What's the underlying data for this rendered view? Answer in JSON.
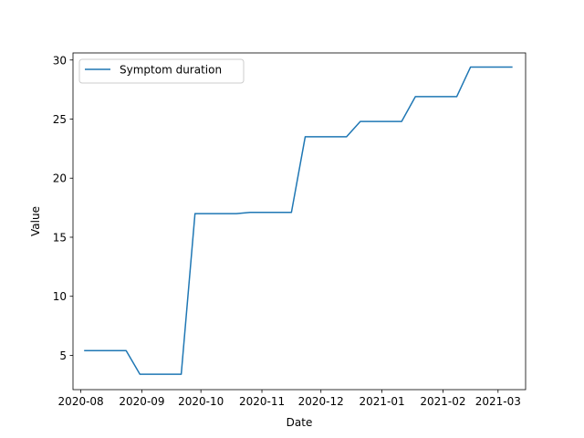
{
  "chart_data": {
    "type": "line",
    "xlabel": "Date",
    "ylabel": "Value",
    "x_ticks": [
      "2020-08",
      "2020-09",
      "2020-10",
      "2020-11",
      "2020-12",
      "2021-01",
      "2021-02",
      "2021-03"
    ],
    "y_ticks": [
      "5",
      "10",
      "15",
      "20",
      "25",
      "30"
    ],
    "ylim": [
      2.1,
      30.6
    ],
    "xlim": [
      "2020-07-28",
      "2021-03-15"
    ],
    "grid": false,
    "legend_position": "top-left",
    "series": [
      {
        "name": "Symptom duration",
        "color": "#1f77b4",
        "points": [
          {
            "x": "2020-08-03",
            "y": 5.4
          },
          {
            "x": "2020-08-24",
            "y": 5.4
          },
          {
            "x": "2020-08-31",
            "y": 3.4
          },
          {
            "x": "2020-09-21",
            "y": 3.4
          },
          {
            "x": "2020-09-28",
            "y": 17.0
          },
          {
            "x": "2020-10-19",
            "y": 17.0
          },
          {
            "x": "2020-10-26",
            "y": 17.1
          },
          {
            "x": "2020-11-16",
            "y": 17.1
          },
          {
            "x": "2020-11-23",
            "y": 23.5
          },
          {
            "x": "2020-12-14",
            "y": 23.5
          },
          {
            "x": "2020-12-21",
            "y": 24.8
          },
          {
            "x": "2021-01-11",
            "y": 24.8
          },
          {
            "x": "2021-01-18",
            "y": 26.9
          },
          {
            "x": "2021-02-08",
            "y": 26.9
          },
          {
            "x": "2021-02-15",
            "y": 29.4
          },
          {
            "x": "2021-03-08",
            "y": 29.4
          }
        ]
      }
    ]
  }
}
